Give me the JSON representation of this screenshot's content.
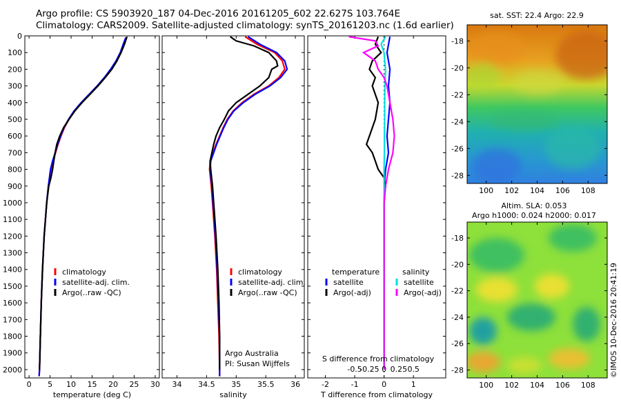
{
  "header": {
    "line1": "Argo profile: CS 5903920_187 04-Dec-2016 20161205_602 22.627S 103.764E",
    "line2": "Climatology: CARS2009. Satellite-adjusted climatology: synTS_20161203.nc (1.6d earlier)"
  },
  "depth_ticks": [
    0,
    100,
    200,
    300,
    400,
    500,
    600,
    700,
    800,
    900,
    1000,
    1100,
    1200,
    1300,
    1400,
    1500,
    1600,
    1700,
    1800,
    1900,
    2000
  ],
  "colors": {
    "climatology": "#ff0000",
    "satellite": "#0000ff",
    "argo": "#000000",
    "argo_sal_adj": "#ff00ff",
    "satellite_sal": "#00e0e0"
  },
  "chart_data": [
    {
      "type": "line",
      "id": "temperature",
      "xlabel": "temperature (deg C)",
      "xlim": [
        -1,
        31
      ],
      "xticks": [
        0,
        5,
        10,
        15,
        20,
        25,
        30
      ],
      "ylim": [
        2050,
        0
      ],
      "legend": {
        "placement": "lower-left",
        "entries": [
          "climatology",
          "satellite-adj. clim.",
          "Argo(..raw -QC)"
        ]
      },
      "series": [
        {
          "name": "climatology",
          "color": "#ff0000",
          "y": [
            10,
            50,
            100,
            150,
            200,
            250,
            300,
            350,
            400,
            450,
            500,
            550,
            600,
            650,
            700,
            750,
            800,
            900,
            1000,
            1200,
            1400,
            1600,
            1800,
            2000,
            2040
          ],
          "x": [
            23.2,
            22.6,
            21.8,
            20.8,
            19.5,
            18.0,
            16.3,
            14.4,
            12.5,
            10.8,
            9.5,
            8.4,
            7.6,
            6.9,
            6.3,
            5.7,
            5.2,
            4.6,
            4.2,
            3.6,
            3.2,
            2.9,
            2.7,
            2.5,
            2.4
          ]
        },
        {
          "name": "satellite-adj. clim.",
          "color": "#0000ff",
          "y": [
            10,
            50,
            100,
            150,
            200,
            250,
            300,
            350,
            400,
            450,
            500,
            550,
            600,
            650,
            700,
            750,
            800,
            900,
            1000,
            1200,
            1400,
            1600,
            1800,
            2000,
            2040
          ],
          "x": [
            23.0,
            22.4,
            21.7,
            20.7,
            19.4,
            17.9,
            16.2,
            14.3,
            12.4,
            10.7,
            9.4,
            8.3,
            7.5,
            6.8,
            6.2,
            5.6,
            5.1,
            4.6,
            4.2,
            3.6,
            3.2,
            2.9,
            2.7,
            2.5,
            2.4
          ]
        },
        {
          "name": "Argo(..raw -QC)",
          "color": "#000000",
          "y": [
            5,
            50,
            100,
            150,
            200,
            250,
            300,
            350,
            400,
            450,
            500,
            550,
            600,
            650,
            700,
            750,
            800,
            850,
            900,
            1000,
            1200,
            1400,
            1600,
            1800,
            2000
          ],
          "x": [
            23.3,
            22.7,
            21.9,
            20.9,
            19.7,
            18.1,
            16.4,
            14.5,
            12.6,
            10.9,
            9.5,
            8.2,
            7.3,
            6.6,
            6.2,
            5.9,
            5.6,
            5.2,
            4.7,
            4.2,
            3.6,
            3.2,
            2.9,
            2.7,
            2.5
          ]
        }
      ]
    },
    {
      "type": "line",
      "id": "salinity",
      "xlabel": "salinity",
      "xlim": [
        33.75,
        36.15
      ],
      "xticks": [
        34,
        34.5,
        35,
        35.5,
        36
      ],
      "ylim": [
        2050,
        0
      ],
      "legend": {
        "placement": "lower-left",
        "entries": [
          "climatology",
          "satellite-adj. clim.",
          "Argo(..raw -QC)"
        ]
      },
      "annotation": [
        "Argo Australia",
        "PI: Susan Wijffels"
      ],
      "series": [
        {
          "name": "climatology",
          "color": "#ff0000",
          "y": [
            5,
            50,
            100,
            150,
            200,
            250,
            300,
            350,
            400,
            450,
            500,
            550,
            600,
            650,
            700,
            750,
            800,
            900,
            1000,
            1200,
            1400,
            1600,
            1800,
            2000,
            2040
          ],
          "x": [
            35.15,
            35.35,
            35.65,
            35.78,
            35.82,
            35.72,
            35.55,
            35.3,
            35.1,
            34.95,
            34.85,
            34.78,
            34.72,
            34.66,
            34.61,
            34.56,
            34.55,
            34.58,
            34.6,
            34.64,
            34.67,
            34.69,
            34.71,
            34.72,
            34.72
          ]
        },
        {
          "name": "satellite-adj. clim.",
          "color": "#0000ff",
          "y": [
            5,
            50,
            100,
            150,
            200,
            250,
            300,
            350,
            400,
            450,
            500,
            550,
            600,
            650,
            700,
            750,
            800,
            900,
            1000,
            1200,
            1400,
            1600,
            1800,
            2000,
            2040
          ],
          "x": [
            35.2,
            35.4,
            35.68,
            35.82,
            35.86,
            35.75,
            35.57,
            35.32,
            35.12,
            34.96,
            34.86,
            34.79,
            34.73,
            34.67,
            34.62,
            34.57,
            34.56,
            34.59,
            34.61,
            34.65,
            34.68,
            34.7,
            34.72,
            34.72,
            34.72
          ]
        },
        {
          "name": "Argo(..raw -QC)",
          "color": "#000000",
          "y": [
            5,
            30,
            60,
            100,
            150,
            180,
            200,
            250,
            300,
            350,
            400,
            450,
            500,
            550,
            600,
            650,
            700,
            750,
            800,
            900,
            1000,
            1200,
            1400,
            1600,
            1800,
            2000
          ],
          "x": [
            34.9,
            35.0,
            35.3,
            35.55,
            35.68,
            35.7,
            35.6,
            35.55,
            35.4,
            35.2,
            35.0,
            34.87,
            34.8,
            34.72,
            34.66,
            34.62,
            34.59,
            34.56,
            34.57,
            34.6,
            34.62,
            34.66,
            34.69,
            34.71,
            34.72,
            34.72
          ]
        }
      ]
    },
    {
      "type": "line",
      "id": "difference",
      "xlabel": "T difference from climatology",
      "xlabel_top": "S difference from climatology",
      "xlim": [
        -2.6,
        2.1
      ],
      "xticks": [
        -2,
        -1,
        0,
        1
      ],
      "s_ticks": [
        -0.5,
        -0.25,
        0,
        0.25,
        0.5
      ],
      "ylim": [
        2050,
        0
      ],
      "legend": {
        "placement": "lower-center",
        "temperature_title": "temperature",
        "salinity_title": "salinity",
        "entries": [
          "satellite",
          "Argo(-adj)",
          "satellite",
          "Argo(-adj)"
        ]
      },
      "series": [
        {
          "name": "temperature satellite",
          "color": "#0000ff",
          "y": [
            5,
            100,
            200,
            300,
            400,
            500,
            600,
            700,
            800,
            900,
            1000,
            1200,
            1400,
            1600,
            1800,
            2000
          ],
          "x": [
            0.2,
            0.1,
            0.2,
            0.15,
            0.2,
            0.15,
            0.1,
            0.15,
            0.05,
            0.0,
            0.0,
            0.0,
            0.0,
            0.0,
            0.0,
            0.0
          ]
        },
        {
          "name": "temperature Argo(-adj)",
          "color": "#000000",
          "y": [
            5,
            50,
            100,
            150,
            200,
            250,
            300,
            400,
            500,
            600,
            650,
            700,
            750,
            800,
            850,
            900,
            1000,
            1200,
            1400,
            1600,
            1800,
            2000
          ],
          "x": [
            -0.2,
            -0.3,
            -0.1,
            -0.4,
            -0.5,
            -0.3,
            -0.4,
            -0.2,
            -0.3,
            -0.5,
            -0.6,
            -0.4,
            -0.3,
            -0.2,
            0.0,
            0.05,
            0.0,
            0.0,
            0.0,
            0.0,
            0.0,
            0.0
          ]
        },
        {
          "name": "salinity satellite",
          "color": "#00e0e0",
          "y": [
            5,
            50,
            100,
            150,
            200,
            300,
            400,
            500,
            600,
            700,
            800,
            900,
            1000,
            1200,
            1400,
            1600,
            1800,
            2000
          ],
          "x": [
            0.05,
            -0.1,
            0.0,
            0.02,
            0.05,
            0.03,
            0.02,
            0.02,
            0.01,
            0.01,
            0.0,
            0.0,
            0.0,
            0.0,
            0.0,
            0.0,
            0.0,
            0.0
          ]
        },
        {
          "name": "salinity Argo(-adj)",
          "color": "#ff00ff",
          "y": [
            5,
            30,
            60,
            100,
            150,
            200,
            250,
            300,
            400,
            500,
            600,
            700,
            800,
            900,
            1000,
            1200,
            1400,
            1600,
            1800,
            2000
          ],
          "x": [
            -1.2,
            -0.3,
            -0.2,
            -0.7,
            -0.3,
            -0.2,
            0.0,
            0.1,
            0.2,
            0.3,
            0.35,
            0.3,
            0.15,
            0.05,
            0.0,
            0.0,
            0.0,
            0.0,
            0.0,
            0.0
          ]
        }
      ]
    },
    {
      "type": "heatmap",
      "id": "sst_map",
      "title": "sat. SST: 22.4 Argo: 22.9",
      "xlim": [
        98.5,
        109.5
      ],
      "ylim": [
        -28.6,
        -16.8
      ],
      "xticks": [
        100,
        102,
        104,
        106,
        108
      ],
      "yticks": [
        -16,
        -18,
        -20,
        -22,
        -24,
        -26,
        -28
      ],
      "ytick_labels": [
        "-18",
        "-20",
        "-22",
        "-24",
        "-26",
        "-28"
      ],
      "ytick_values": [
        -18,
        -20,
        -22,
        -24,
        -26,
        -28
      ]
    },
    {
      "type": "heatmap",
      "id": "sla_map",
      "title": "Altim. SLA: 0.053",
      "subtitle": "Argo h1000: 0.024 h2000: 0.017",
      "xlim": [
        98.5,
        109.5
      ],
      "ylim": [
        -28.6,
        -16.8
      ],
      "xticks": [
        100,
        102,
        104,
        106,
        108
      ],
      "ytick_values": [
        -18,
        -20,
        -22,
        -24,
        -26,
        -28
      ]
    }
  ],
  "credit": "©IMOS 10-Dec-2016 20:41:19"
}
